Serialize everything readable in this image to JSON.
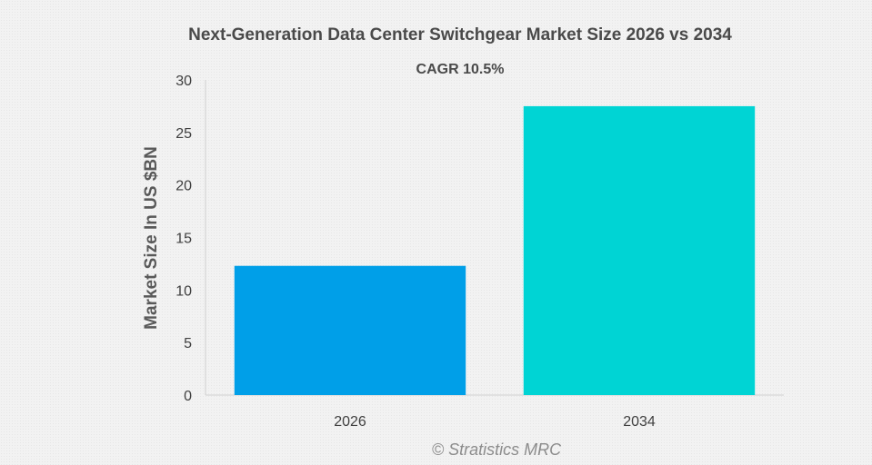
{
  "chart_data": {
    "type": "bar",
    "title": "Next-Generation Data Center Switchgear Market Size 2026 vs 2034",
    "subtitle": "CAGR 10.5%",
    "xlabel": "",
    "ylabel": "Market Size In US $BN",
    "categories": [
      "2026",
      "2034"
    ],
    "values": [
      12.3,
      27.5
    ],
    "colors": [
      "#009fe8",
      "#00d4d4"
    ],
    "ylim": [
      0,
      30
    ],
    "yticks": [
      0,
      5,
      10,
      15,
      20,
      25,
      30
    ],
    "grid": false,
    "legend": "none"
  },
  "footer": {
    "source": "© Stratistics MRC"
  }
}
